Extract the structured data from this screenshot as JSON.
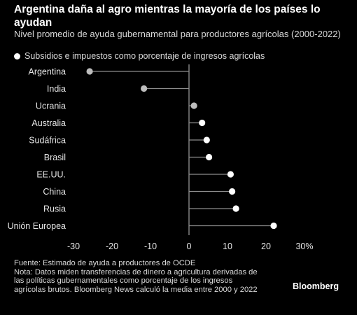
{
  "header": {
    "title": "Argentina daña al agro mientras la mayoría de los países lo ayudan",
    "subtitle": "Nivel promedio de ayuda gubernamental para productores agrícolas (2000-2022)"
  },
  "legend": {
    "label": "Subsidios e impuestos como porcentaje de ingresos agrícolas"
  },
  "chart_data": {
    "type": "dot",
    "categories": [
      "Argentina",
      "India",
      "Ucrania",
      "Australia",
      "Sudáfrica",
      "Brasil",
      "EE.UU.",
      "China",
      "Rusia",
      "Unión Europea"
    ],
    "series": [
      {
        "name": "Subsidios e impuestos como porcentaje de ingresos agrícolas",
        "values": [
          -25.8,
          -11.7,
          1.3,
          3.4,
          4.6,
          5.2,
          10.8,
          11.2,
          12.2,
          22.0
        ]
      }
    ],
    "x_ticks": [
      "-30",
      "-20",
      "-10",
      "0",
      "10",
      "20",
      "30%"
    ],
    "xlim": [
      -30,
      30
    ],
    "grid": false,
    "legend_position": "top-left",
    "colors": {
      "positive": "#ffffff",
      "negative": "#bdbdbd",
      "stem": "#8c8c8c",
      "axis": "#bfbfbf"
    }
  },
  "footer": {
    "source": "Fuente: Estimado de ayuda a productores de OCDE",
    "note": "Nota: Datos miden transferencias de dinero a agricultura derivadas de las políticas gubernamentales como porcentaje de los ingresos agrícolas brutos. Bloomberg News calculó la media entre 2000 y 2022",
    "brand": "Bloomberg"
  }
}
